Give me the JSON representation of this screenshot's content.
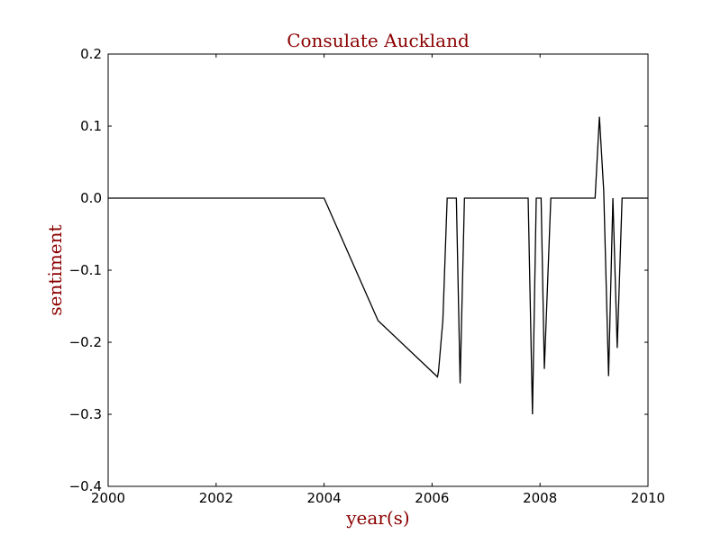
{
  "chart_data": {
    "type": "line",
    "title": "Consulate Auckland",
    "xlabel": "year(s)",
    "ylabel": "sentiment",
    "xlim": [
      2000,
      2010
    ],
    "ylim": [
      -0.4,
      0.2
    ],
    "x_ticks": [
      2000,
      2002,
      2004,
      2006,
      2008,
      2010
    ],
    "y_ticks": [
      -0.4,
      -0.3,
      -0.2,
      -0.1,
      0.0,
      0.1,
      0.2
    ],
    "x_tick_labels": [
      "2000",
      "2002",
      "2004",
      "2006",
      "2008",
      "2010"
    ],
    "y_tick_labels": [
      "−0.4",
      "−0.3",
      "−0.2",
      "−0.1",
      "0.0",
      "0.1",
      "0.2"
    ],
    "grid": false,
    "series": [
      {
        "color": "#000000",
        "x": [
          2000.0,
          2004.0,
          2005.0,
          2006.1,
          2006.12,
          2006.2,
          2006.28,
          2006.45,
          2006.52,
          2006.6,
          2007.78,
          2007.86,
          2007.93,
          2008.02,
          2008.08,
          2008.2,
          2009.02,
          2009.1,
          2009.18,
          2009.27,
          2009.35,
          2009.43,
          2009.52,
          2010.0
        ],
        "y": [
          0.0,
          0.0,
          -0.17,
          -0.248,
          -0.24,
          -0.17,
          0.0,
          0.0,
          -0.257,
          0.0,
          0.0,
          -0.3,
          0.0,
          0.0,
          -0.237,
          0.0,
          0.0,
          0.113,
          0.01,
          -0.247,
          0.0,
          -0.208,
          0.0,
          0.0
        ]
      }
    ]
  },
  "colors": {
    "title": "#8b0000",
    "axis_label": "#8b0000",
    "line": "#000000"
  }
}
